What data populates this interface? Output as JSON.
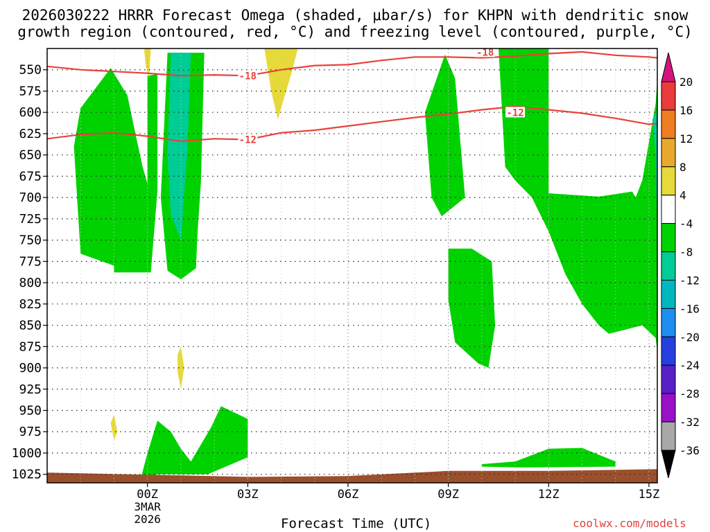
{
  "title": "2026030222 HRRR Forecast Omega (shaded, μbar/s) for KHPN with dendritic snow",
  "subtitle": "growth region (contoured, red, °C) and freezing level (contoured, purple, °C)",
  "credit": "coolwx.com/models",
  "chart_data": {
    "type": "time-height cross section",
    "xlabel": "Forecast Time (UTC)",
    "x_range_hours": [
      -3,
      15.25
    ],
    "x_ticks": [
      {
        "hour": 0,
        "label": "00Z",
        "sub": [
          "3MAR",
          "2026"
        ]
      },
      {
        "hour": 3,
        "label": "03Z"
      },
      {
        "hour": 6,
        "label": "06Z"
      },
      {
        "hour": 9,
        "label": "09Z"
      },
      {
        "hour": 12,
        "label": "12Z"
      },
      {
        "hour": 15,
        "label": "15Z"
      }
    ],
    "y_axis": {
      "units": "hPa",
      "range": [
        1035,
        525
      ],
      "ticks": [
        550,
        575,
        600,
        625,
        650,
        675,
        700,
        725,
        750,
        775,
        800,
        825,
        850,
        875,
        900,
        925,
        950,
        975,
        1000,
        1025
      ]
    },
    "grid": true,
    "colorbar": {
      "label_values": [
        20,
        16,
        12,
        8,
        4,
        -4,
        -8,
        -12,
        -16,
        -20,
        -24,
        -28,
        -32,
        -36
      ],
      "colors": [
        "#d4147d",
        "#ea3b3b",
        "#ee7d22",
        "#e8a92c",
        "#e6d93a",
        "#ffffff",
        "#00d200",
        "#00cc96",
        "#00b8c0",
        "#1e8ef0",
        "#2640e0",
        "#5a20c8",
        "#9a10c8",
        "#a8a8a8",
        "#000000"
      ]
    },
    "isotherms": [
      {
        "label": "-18",
        "color": "#e8413a",
        "points": [
          [
            -3,
            546
          ],
          [
            -2,
            550
          ],
          [
            -1,
            552
          ],
          [
            0,
            554
          ],
          [
            1,
            557
          ],
          [
            2,
            556
          ],
          [
            3,
            557
          ],
          [
            4,
            550
          ],
          [
            5,
            545
          ],
          [
            6,
            544
          ],
          [
            7,
            539
          ],
          [
            8,
            535
          ],
          [
            9,
            535
          ],
          [
            10,
            536
          ],
          [
            11,
            534
          ],
          [
            12,
            531
          ],
          [
            13,
            529
          ],
          [
            14,
            533
          ],
          [
            15,
            535
          ],
          [
            15.25,
            536
          ]
        ]
      },
      {
        "label": "-12",
        "color": "#e8413a",
        "points": [
          [
            -3,
            631
          ],
          [
            -2,
            626
          ],
          [
            -1,
            624
          ],
          [
            0,
            628
          ],
          [
            1,
            634
          ],
          [
            2,
            631
          ],
          [
            3,
            632
          ],
          [
            4,
            624
          ],
          [
            5,
            621
          ],
          [
            6,
            616
          ],
          [
            7,
            611
          ],
          [
            8,
            606
          ],
          [
            9,
            602
          ],
          [
            10,
            597
          ],
          [
            11,
            593
          ],
          [
            12,
            597
          ],
          [
            13,
            601
          ],
          [
            14,
            607
          ],
          [
            15,
            614
          ],
          [
            15.25,
            613
          ]
        ]
      }
    ],
    "omega_regions": [
      {
        "value_range": "-8 to -4",
        "color": "#00d200",
        "points": [
          [
            -1.1,
            548
          ],
          [
            -0.6,
            580
          ],
          [
            -0.35,
            627
          ],
          [
            -0.15,
            663
          ],
          [
            0,
            684
          ],
          [
            0,
            557
          ],
          [
            0.3,
            555
          ],
          [
            0.3,
            692
          ],
          [
            0.1,
            788
          ],
          [
            -1,
            788
          ],
          [
            -1,
            780
          ],
          [
            -2,
            766
          ],
          [
            -2.2,
            640
          ],
          [
            -2,
            595
          ]
        ]
      },
      {
        "value_range": "-8 to -4",
        "color": "#00d200",
        "points": [
          [
            0.6,
            530
          ],
          [
            1.7,
            530
          ],
          [
            1.6,
            682
          ],
          [
            1.5,
            740
          ],
          [
            1.45,
            783
          ],
          [
            1,
            796
          ],
          [
            0.6,
            786
          ],
          [
            0.4,
            700
          ]
        ]
      },
      {
        "value_range": "-12 to -8",
        "color": "#00cc96",
        "points": [
          [
            0.7,
            530
          ],
          [
            1.3,
            530
          ],
          [
            1.2,
            640
          ],
          [
            1,
            750
          ],
          [
            0.7,
            720
          ],
          [
            0.6,
            650
          ]
        ]
      },
      {
        "value_range": "-8 to -4",
        "color": "#00d200",
        "points": [
          [
            8.9,
            532
          ],
          [
            8.3,
            600
          ],
          [
            8.5,
            700
          ],
          [
            8.8,
            722
          ],
          [
            9.5,
            700
          ],
          [
            9.2,
            560
          ]
        ]
      },
      {
        "value_range": "-8 to -4",
        "color": "#00d200",
        "points": [
          [
            9,
            760
          ],
          [
            9.7,
            760
          ],
          [
            10.3,
            775
          ],
          [
            10.4,
            850
          ],
          [
            10.2,
            900
          ],
          [
            9.9,
            895
          ],
          [
            9.2,
            870
          ],
          [
            9,
            820
          ]
        ]
      },
      {
        "value_range": "-8 to -4",
        "color": "#00d200",
        "points": [
          [
            10.5,
            525
          ],
          [
            12,
            525
          ],
          [
            12,
            695
          ],
          [
            13.5,
            699
          ],
          [
            14.5,
            693
          ],
          [
            14.6,
            700
          ],
          [
            14.8,
            680
          ],
          [
            15.2,
            590
          ],
          [
            15.7,
            560
          ],
          [
            15.7,
            880
          ],
          [
            15.2,
            865
          ],
          [
            14.8,
            850
          ],
          [
            13.8,
            860
          ],
          [
            13.5,
            850
          ],
          [
            13,
            825
          ],
          [
            12.5,
            790
          ],
          [
            12,
            740
          ],
          [
            11.5,
            700
          ],
          [
            11,
            680
          ],
          [
            10.7,
            664
          ]
        ]
      },
      {
        "value_range": "-12 to -8",
        "color": "#00cc96",
        "points": [
          [
            15.1,
            608
          ],
          [
            15.6,
            600
          ],
          [
            15.7,
            650
          ],
          [
            15.5,
            770
          ],
          [
            15.2,
            650
          ]
        ]
      },
      {
        "value_range": "-8 to -4",
        "color": "#00d200",
        "points": [
          [
            -0.2,
            1030
          ],
          [
            0,
            1000
          ],
          [
            0.3,
            962
          ],
          [
            0.7,
            975
          ],
          [
            1,
            995
          ],
          [
            1.3,
            1010
          ],
          [
            1.6,
            990
          ],
          [
            1.9,
            970
          ],
          [
            2.2,
            945
          ],
          [
            3,
            960
          ],
          [
            3,
            1005
          ],
          [
            1.8,
            1025
          ],
          [
            0.3,
            1025
          ]
        ]
      },
      {
        "value_range": "-8 to -4",
        "color": "#00d200",
        "points": [
          [
            10,
            1013
          ],
          [
            11,
            1010
          ],
          [
            12,
            995
          ],
          [
            13,
            994
          ],
          [
            14,
            1010
          ],
          [
            14,
            1016
          ],
          [
            11.2,
            1017
          ],
          [
            10,
            1016
          ]
        ]
      },
      {
        "value_range": "4 to 8",
        "color": "#e6d93a",
        "points": [
          [
            -0.1,
            525
          ],
          [
            0.1,
            525
          ],
          [
            0.05,
            560
          ],
          [
            -0.05,
            545
          ]
        ]
      },
      {
        "value_range": "4 to 8",
        "color": "#e6d93a",
        "points": [
          [
            3.5,
            525
          ],
          [
            4.5,
            525
          ],
          [
            4.3,
            555
          ],
          [
            3.9,
            608
          ],
          [
            3.7,
            575
          ]
        ]
      },
      {
        "value_range": "4 to 8",
        "color": "#e6d93a",
        "points": [
          [
            0.9,
            885
          ],
          [
            1,
            875
          ],
          [
            1.1,
            900
          ],
          [
            1,
            925
          ],
          [
            0.9,
            905
          ]
        ]
      },
      {
        "value_range": "4 to 8",
        "color": "#e6d93a",
        "points": [
          [
            -1.1,
            965
          ],
          [
            -1,
            955
          ],
          [
            -0.9,
            975
          ],
          [
            -1,
            985
          ]
        ]
      }
    ],
    "terrain": {
      "color": "#9c4f2b",
      "points": [
        [
          -3,
          1023
        ],
        [
          3,
          1028
        ],
        [
          6,
          1027
        ],
        [
          9,
          1021
        ],
        [
          12,
          1021
        ],
        [
          15.25,
          1019
        ]
      ]
    }
  }
}
